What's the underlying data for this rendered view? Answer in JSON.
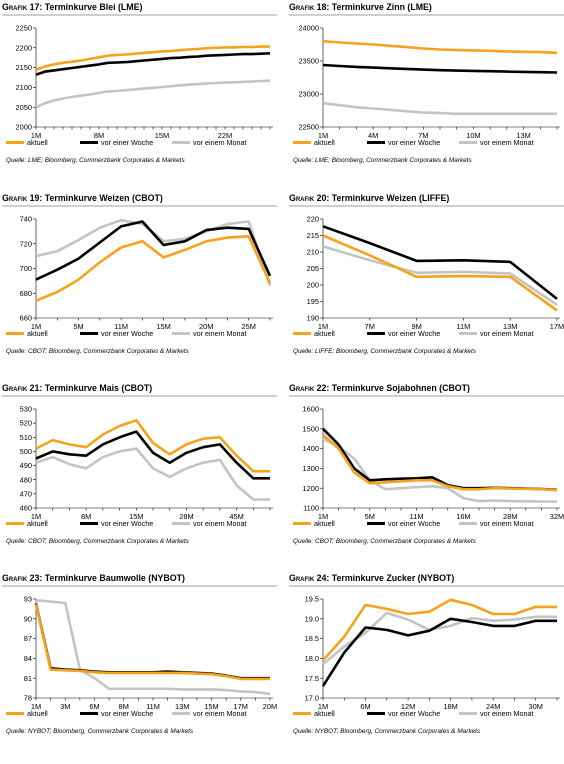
{
  "colors": {
    "aktuell": "#f7a21c",
    "woche": "#000000",
    "monat": "#c4c4c4"
  },
  "charts": [
    {
      "num": "17",
      "title": "Terminkurve Blei (LME)",
      "source": "Quelle: LME; Bloomberg, Commerzbank Corporates & Markets",
      "legend": [
        "aktuell",
        "vor einer Woche",
        "vor einem Monat"
      ],
      "chart_data": {
        "type": "line",
        "x_count": 27,
        "x_tick_labels": [
          "1M",
          "8M",
          "15M",
          "22M"
        ],
        "x_tick_index": [
          0,
          7,
          14,
          21
        ],
        "ylim": [
          2000,
          2250
        ],
        "yticks": [
          2000,
          2050,
          2100,
          2150,
          2200,
          2250
        ],
        "series": [
          {
            "name": "aktuell",
            "values": [
              2145,
              2153,
              2158,
              2162,
              2165,
              2168,
              2172,
              2176,
              2180,
              2182,
              2183,
              2185,
              2187,
              2189,
              2191,
              2192,
              2194,
              2196,
              2197,
              2199,
              2200,
              2201,
              2201,
              2202,
              2202,
              2203,
              2203
            ]
          },
          {
            "name": "vor einer Woche",
            "values": [
              2132,
              2140,
              2143,
              2146,
              2149,
              2152,
              2155,
              2158,
              2162,
              2163,
              2164,
              2166,
              2168,
              2170,
              2172,
              2174,
              2175,
              2177,
              2178,
              2180,
              2181,
              2182,
              2183,
              2184,
              2184,
              2185,
              2186
            ]
          },
          {
            "name": "vor einem Monat",
            "values": [
              2050,
              2060,
              2067,
              2072,
              2076,
              2079,
              2082,
              2086,
              2090,
              2091,
              2093,
              2095,
              2097,
              2099,
              2101,
              2103,
              2105,
              2107,
              2108,
              2110,
              2111,
              2112,
              2113,
              2114,
              2115,
              2116,
              2117
            ]
          }
        ]
      }
    },
    {
      "num": "18",
      "title": "Terminkurve Zinn (LME)",
      "source": "Quelle: LME; Bloomberg, Commerzbank Corporates & Markets",
      "legend": [
        "aktuell",
        "vor einer Woche",
        "vor einem Monat"
      ],
      "chart_data": {
        "type": "line",
        "x_count": 15,
        "x_tick_labels": [
          "1M",
          "4M",
          "7M",
          "10M",
          "13M"
        ],
        "x_tick_index": [
          0,
          3,
          6,
          9,
          12
        ],
        "ylim": [
          22500,
          24000
        ],
        "yticks": [
          22500,
          23000,
          23500,
          24000
        ],
        "series": [
          {
            "name": "aktuell",
            "values": [
              23800,
              23780,
              23765,
              23750,
              23730,
              23710,
              23690,
              23675,
              23665,
              23660,
              23655,
              23645,
              23640,
              23635,
              23625
            ]
          },
          {
            "name": "vor einer Woche",
            "values": [
              23440,
              23425,
              23410,
              23400,
              23390,
              23380,
              23370,
              23360,
              23355,
              23350,
              23345,
              23340,
              23335,
              23330,
              23325
            ]
          },
          {
            "name": "vor einem Monat",
            "values": [
              22860,
              22830,
              22800,
              22780,
              22760,
              22740,
              22720,
              22710,
              22700,
              22700,
              22700,
              22700,
              22700,
              22700,
              22700
            ]
          }
        ]
      }
    },
    {
      "num": "19",
      "title": "Terminkurve Weizen (CBOT)",
      "source": "Quelle: CBOT; Bloomberg, Commerzbank Corporates & Markets",
      "legend": [
        "aktuell",
        "vor einer Woche",
        "vor einem Monat"
      ],
      "chart_data": {
        "type": "line",
        "x_count": 12,
        "x_tick_labels": [
          "1M",
          "5M",
          "11M",
          "15M",
          "20M",
          "25M"
        ],
        "x_tick_index": [
          0,
          2,
          4,
          6,
          8,
          10
        ],
        "ylim": [
          660,
          740
        ],
        "yticks": [
          660,
          680,
          700,
          720,
          740
        ],
        "series": [
          {
            "name": "aktuell",
            "values": [
              674,
              681,
              691,
              705,
              717,
              722,
              709,
              715,
              722,
              725,
              726,
              688
            ]
          },
          {
            "name": "vor einer Woche",
            "values": [
              691,
              699,
              708,
              721,
              734,
              738,
              719,
              722,
              731,
              733,
              732,
              694
            ]
          },
          {
            "name": "vor einem Monat",
            "values": [
              710,
              714,
              723,
              733,
              739,
              736,
              722,
              724,
              730,
              736,
              738,
              686
            ]
          }
        ]
      }
    },
    {
      "num": "20",
      "title": "Terminkurve Weizen (LIFFE)",
      "source": "Quelle: LIFFE; Bloomberg, Commerzbank Corporates & Markets",
      "legend": [
        "aktuell",
        "vor einer Woche",
        "vor einem Monat"
      ],
      "chart_data": {
        "type": "line",
        "x_count": 6,
        "x_tick_labels": [
          "1M",
          "7M",
          "9M",
          "11M",
          "13M",
          "17M"
        ],
        "x_tick_index": [
          0,
          1,
          2,
          3,
          4,
          5
        ],
        "ylim": [
          190,
          220
        ],
        "yticks": [
          190,
          195,
          200,
          205,
          210,
          215,
          220
        ],
        "series": [
          {
            "name": "aktuell",
            "values": [
              215,
              209,
              202.5,
              202.7,
              202.5,
              192.3
            ]
          },
          {
            "name": "vor einer Woche",
            "values": [
              217.8,
              212.7,
              207.3,
              207.5,
              207,
              195.8
            ]
          },
          {
            "name": "vor einem Monat",
            "values": [
              211.7,
              207.5,
              203.7,
              204,
              203.5,
              194
            ]
          }
        ]
      }
    },
    {
      "num": "21",
      "title": "Terminkurve Mais (CBOT)",
      "source": "Quelle: CBOT; Bloomberg, Commerzbank Corporates & Markets",
      "legend": [
        "aktuell",
        "vor einer Woche",
        "vor einem Monat"
      ],
      "chart_data": {
        "type": "line",
        "x_count": 15,
        "x_tick_labels": [
          "1M",
          "8M",
          "15M",
          "28M",
          "45M"
        ],
        "x_tick_index": [
          0,
          3,
          6,
          9,
          12
        ],
        "ylim": [
          460,
          530
        ],
        "yticks": [
          460,
          470,
          480,
          490,
          500,
          510,
          520,
          530
        ],
        "series": [
          {
            "name": "aktuell",
            "values": [
              502,
              508,
              505,
              503,
              512,
              518,
              522,
              506,
              498,
              505,
              509,
              510,
              497,
              486,
              486
            ]
          },
          {
            "name": "vor einer Woche",
            "values": [
              495,
              500,
              498,
              497,
              505,
              510,
              514,
              499,
              492,
              499,
              503,
              505,
              492,
              481,
              481
            ]
          },
          {
            "name": "vor einem Monat",
            "values": [
              492,
              496,
              491,
              488,
              496,
              500,
              502,
              488,
              482,
              488,
              492,
              494,
              476,
              466,
              466
            ]
          }
        ]
      }
    },
    {
      "num": "22",
      "title": "Terminkurve Sojabohnen (CBOT)",
      "source": "Quelle: CBOT; Bloomberg, Commerzbank Corporates & Markets",
      "legend": [
        "aktuell",
        "vor einer Woche",
        "vor einem Monat"
      ],
      "chart_data": {
        "type": "line",
        "x_count": 16,
        "x_tick_labels": [
          "1M",
          "5M",
          "11M",
          "16M",
          "28M",
          "32M"
        ],
        "x_tick_index": [
          0,
          3,
          6,
          9,
          12,
          15
        ],
        "ylim": [
          1100,
          1600
        ],
        "yticks": [
          1100,
          1200,
          1300,
          1400,
          1500,
          1600
        ],
        "series": [
          {
            "name": "aktuell",
            "values": [
              1470,
              1400,
              1280,
              1225,
              1230,
              1235,
              1240,
              1240,
              1210,
              1195,
              1195,
              1200,
              1198,
              1197,
              1195,
              1190
            ]
          },
          {
            "name": "vor einer Woche",
            "values": [
              1500,
              1420,
              1300,
              1240,
              1245,
              1248,
              1250,
              1255,
              1215,
              1200,
              1200,
              1202,
              1200,
              1198,
              1196,
              1192
            ]
          },
          {
            "name": "vor einem Monat",
            "values": [
              1450,
              1410,
              1350,
              1240,
              1195,
              1200,
              1205,
              1210,
              1200,
              1150,
              1135,
              1138,
              1135,
              1134,
              1133,
              1132
            ]
          }
        ]
      }
    },
    {
      "num": "23",
      "title": "Terminkurve Baumwolle (NYBOT)",
      "source": "Quelle: NYBOT; Bloomberg, Commerzbank Corporates & Markets",
      "legend": [
        "aktuell",
        "vor einer Woche",
        "vor einem Monat"
      ],
      "chart_data": {
        "type": "line",
        "x_count": 17,
        "x_tick_labels": [
          "1M",
          "3M",
          "6M",
          "8M",
          "11M",
          "13M",
          "15M",
          "17M",
          "20M"
        ],
        "x_tick_index": [
          0,
          2,
          4,
          6,
          8,
          10,
          12,
          14,
          16
        ],
        "ylim": [
          78,
          93
        ],
        "yticks": [
          78,
          81,
          84,
          87,
          90,
          93
        ],
        "series": [
          {
            "name": "aktuell",
            "values": [
              92.2,
              82.3,
              82.2,
              82.1,
              81.9,
              81.8,
              81.8,
              81.8,
              81.8,
              81.8,
              81.8,
              81.7,
              81.6,
              81.3,
              80.9,
              80.9,
              80.9
            ]
          },
          {
            "name": "vor einer Woche",
            "values": [
              92.3,
              82.5,
              82.3,
              82.2,
              82,
              81.9,
              81.9,
              81.9,
              81.9,
              82,
              81.9,
              81.8,
              81.7,
              81.4,
              81,
              81,
              81
            ]
          },
          {
            "name": "vor einem Monat",
            "values": [
              92.8,
              92.6,
              92.4,
              82.3,
              81,
              79.4,
              79.4,
              79.4,
              79.4,
              79.4,
              79.3,
              79.3,
              79.3,
              79.2,
              79,
              78.9,
              78.6
            ]
          }
        ]
      }
    },
    {
      "num": "24",
      "title": "Terminkurve Zucker (NYBOT)",
      "source": "Quelle: NYBOT; Bloomberg, Commerzbank Corporates & Markets",
      "legend": [
        "aktuell",
        "vor einer Woche",
        "vor einem Monat"
      ],
      "chart_data": {
        "type": "line",
        "x_count": 12,
        "x_tick_labels": [
          "1M",
          "6M",
          "12M",
          "18M",
          "24M",
          "30M"
        ],
        "x_tick_index": [
          0,
          2,
          4,
          6,
          8,
          10
        ],
        "ylim": [
          17.0,
          19.5
        ],
        "yticks": [
          17.0,
          17.5,
          18.0,
          18.5,
          19.0,
          19.5
        ],
        "series": [
          {
            "name": "aktuell",
            "values": [
              17.95,
              18.55,
              19.35,
              19.25,
              19.12,
              19.18,
              19.48,
              19.35,
              19.12,
              19.12,
              19.3,
              19.3
            ]
          },
          {
            "name": "vor einer Woche",
            "values": [
              17.3,
              18.15,
              18.78,
              18.72,
              18.58,
              18.7,
              19.0,
              18.92,
              18.82,
              18.82,
              18.95,
              18.95
            ]
          },
          {
            "name": "vor einem Monat",
            "values": [
              17.85,
              18.3,
              18.65,
              19.15,
              18.98,
              18.72,
              18.82,
              19.02,
              18.95,
              18.98,
              19.05,
              19.05
            ]
          }
        ]
      }
    }
  ]
}
